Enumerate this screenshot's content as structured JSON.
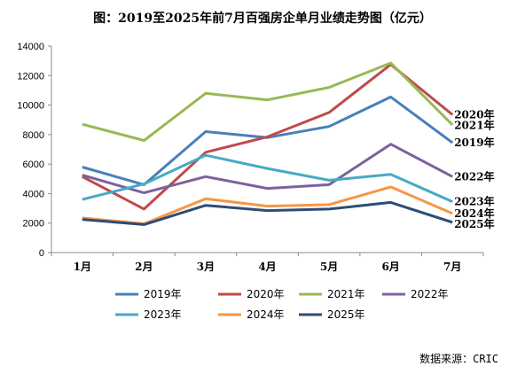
{
  "chart_data": {
    "type": "line",
    "title": "图：2019至2025年前7月百强房企单月业绩走势图（亿元）",
    "source": "数据来源：CRIC",
    "categories": [
      "1月",
      "2月",
      "3月",
      "4月",
      "5月",
      "6月",
      "7月"
    ],
    "ylim": [
      0,
      14000
    ],
    "yticks": [
      0,
      2000,
      4000,
      6000,
      8000,
      10000,
      12000,
      14000
    ],
    "grid": false,
    "legend": "bottom",
    "series": [
      {
        "name": "2019年",
        "color": "#4a7ebb",
        "values": [
          5800,
          4600,
          8200,
          7800,
          8550,
          10550,
          7450
        ]
      },
      {
        "name": "2020年",
        "color": "#be4b48",
        "values": [
          5150,
          2950,
          6800,
          7850,
          9500,
          12750,
          9350
        ]
      },
      {
        "name": "2021年",
        "color": "#98b954",
        "values": [
          8700,
          7600,
          10800,
          10350,
          11200,
          12850,
          8650
        ]
      },
      {
        "name": "2022年",
        "color": "#7d60a0",
        "values": [
          5250,
          4050,
          5150,
          4350,
          4600,
          7350,
          5150
        ]
      },
      {
        "name": "2023年",
        "color": "#46aac5",
        "values": [
          3600,
          4650,
          6600,
          5700,
          4900,
          5300,
          3450
        ]
      },
      {
        "name": "2024年",
        "color": "#f79646",
        "values": [
          2350,
          1950,
          3650,
          3150,
          3250,
          4450,
          2650
        ]
      },
      {
        "name": "2025年",
        "color": "#2c4d75",
        "values": [
          2250,
          1900,
          3200,
          2850,
          2950,
          3400,
          2050
        ]
      }
    ]
  }
}
